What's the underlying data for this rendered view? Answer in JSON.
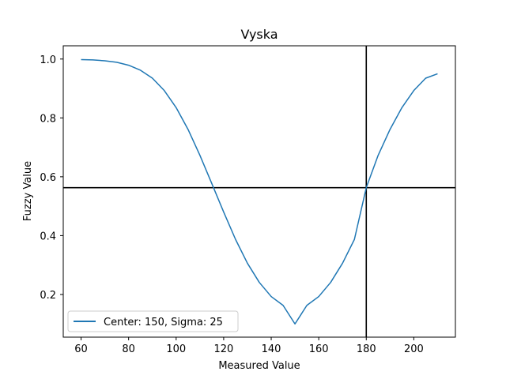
{
  "chart_data": {
    "type": "line",
    "title": "Vyska",
    "xlabel": "Measured Value",
    "ylabel": "Fuzzy Value",
    "xlim": [
      52.5,
      217.5
    ],
    "ylim": [
      0.055,
      1.045
    ],
    "xticks": [
      60,
      80,
      100,
      120,
      140,
      160,
      180,
      200
    ],
    "yticks": [
      0.2,
      0.4,
      0.6,
      0.8,
      1.0
    ],
    "xtick_labels": [
      "60",
      "80",
      "100",
      "120",
      "140",
      "160",
      "180",
      "200"
    ],
    "ytick_labels": [
      "0.2",
      "0.4",
      "0.6",
      "0.8",
      "1.0"
    ],
    "grid": false,
    "legend_position": "lower-left",
    "series": [
      {
        "name": "Center: 150, Sigma: 25",
        "color": "#1f77b4",
        "x": [
          60,
          65,
          70,
          75,
          80,
          85,
          90,
          95,
          100,
          105,
          110,
          115,
          120,
          125,
          130,
          135,
          140,
          145,
          150,
          155,
          160,
          165,
          170,
          175,
          180,
          185,
          190,
          195,
          200,
          205,
          210
        ],
        "y": [
          0.998,
          0.997,
          0.994,
          0.989,
          0.979,
          0.962,
          0.935,
          0.893,
          0.835,
          0.761,
          0.673,
          0.577,
          0.48,
          0.387,
          0.306,
          0.241,
          0.193,
          0.163,
          0.1,
          0.163,
          0.193,
          0.241,
          0.306,
          0.387,
          0.563,
          0.673,
          0.761,
          0.835,
          0.893,
          0.935,
          0.95
        ]
      }
    ],
    "reference_lines": [
      {
        "orientation": "vertical",
        "x": 180,
        "color": "#000000"
      },
      {
        "orientation": "horizontal",
        "y": 0.563,
        "color": "#000000"
      }
    ]
  }
}
